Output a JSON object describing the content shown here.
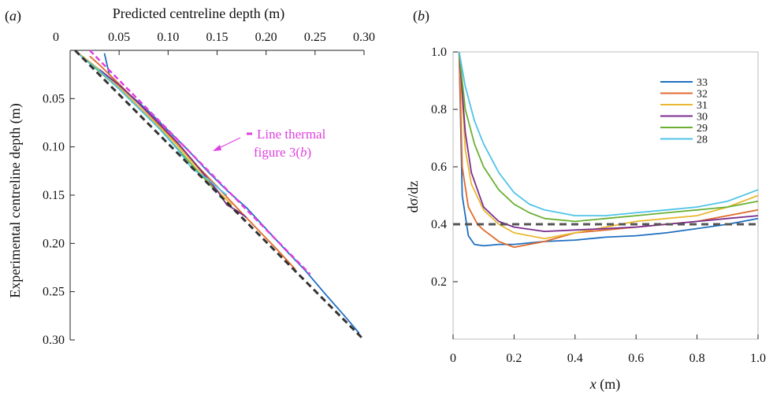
{
  "chart_data": [
    {
      "panel_label": "(a)",
      "type": "line",
      "xlabel": "Predicted centreline depth (m)",
      "ylabel": "Experimental centreline depth (m)",
      "xlim": [
        0,
        0.3
      ],
      "ylim": [
        0,
        0.3
      ],
      "x_axis_position": "top",
      "y_inverted": true,
      "x_ticks": [
        "0",
        "0.05",
        "0.10",
        "0.15",
        "0.20",
        "0.25",
        "0.30"
      ],
      "y_ticks": [
        "0.05",
        "0.10",
        "0.15",
        "0.20",
        "0.25",
        "0.30"
      ],
      "grid": false,
      "annotation": {
        "line1": "Line thermal",
        "line2_prefix": "figure 3(",
        "line2_italic": "b",
        "line2_suffix": ")",
        "color": "#e040e0"
      },
      "reference_line": {
        "x": [
          0.005,
          0.3
        ],
        "y": [
          0.0,
          0.3
        ],
        "color": "#333333",
        "style": "dashed"
      },
      "thermal_line": {
        "x": [
          0.02,
          0.245
        ],
        "y": [
          0.0,
          0.232
        ],
        "color": "#e040e0",
        "style": "dashed"
      },
      "series": [
        {
          "color": "#1f6fc0",
          "x": [
            0.035,
            0.04,
            0.045,
            0.06,
            0.08,
            0.1,
            0.12,
            0.14,
            0.16,
            0.18,
            0.2,
            0.22,
            0.24,
            0.26,
            0.28,
            0.295
          ],
          "y": [
            0.003,
            0.025,
            0.03,
            0.045,
            0.063,
            0.083,
            0.103,
            0.125,
            0.145,
            0.163,
            0.185,
            0.207,
            0.228,
            0.252,
            0.275,
            0.293
          ]
        },
        {
          "color": "#e06a2c",
          "x": [
            0.02,
            0.03,
            0.05,
            0.07,
            0.09,
            0.11,
            0.13,
            0.15,
            0.17,
            0.19,
            0.21,
            0.23
          ],
          "y": [
            0.006,
            0.015,
            0.035,
            0.055,
            0.076,
            0.097,
            0.12,
            0.141,
            0.163,
            0.184,
            0.205,
            0.227
          ]
        },
        {
          "color": "#e9b830",
          "x": [
            0.01,
            0.03,
            0.05,
            0.07,
            0.09,
            0.11,
            0.13,
            0.15,
            0.165
          ],
          "y": [
            0.004,
            0.02,
            0.038,
            0.058,
            0.078,
            0.099,
            0.122,
            0.145,
            0.16
          ]
        },
        {
          "color": "#7b2d8f",
          "x": [
            0.03,
            0.05,
            0.07,
            0.09,
            0.11,
            0.13,
            0.15,
            0.16,
            0.17,
            0.18
          ],
          "y": [
            0.02,
            0.036,
            0.055,
            0.075,
            0.096,
            0.12,
            0.145,
            0.16,
            0.166,
            0.173
          ]
        },
        {
          "color": "#6ab033",
          "x": [
            0.01,
            0.03,
            0.05,
            0.07,
            0.09,
            0.11,
            0.13,
            0.15
          ],
          "y": [
            0.005,
            0.022,
            0.04,
            0.06,
            0.08,
            0.102,
            0.125,
            0.147
          ]
        },
        {
          "color": "#4fc3e8",
          "x": [
            0.01,
            0.03,
            0.05,
            0.07,
            0.09,
            0.11,
            0.125,
            0.14,
            0.155,
            0.16
          ],
          "y": [
            0.005,
            0.021,
            0.04,
            0.06,
            0.08,
            0.103,
            0.123,
            0.133,
            0.146,
            0.15
          ]
        }
      ]
    },
    {
      "panel_label": "(b)",
      "type": "line",
      "xlabel_italic": "x",
      "xlabel_suffix": " (m)",
      "ylabel": "dσ/dz",
      "xlim": [
        0,
        1.0
      ],
      "ylim": [
        0,
        1.0
      ],
      "x_ticks": [
        "0",
        "0.2",
        "0.4",
        "0.6",
        "0.8",
        "1.0"
      ],
      "y_ticks": [
        "0.2",
        "0.4",
        "0.6",
        "0.8",
        "1.0"
      ],
      "grid": false,
      "legend_position": "top-right",
      "reference_line": {
        "y": 0.4,
        "color": "#555555",
        "style": "dashed"
      },
      "series": [
        {
          "name": "33",
          "color": "#1f6fc0",
          "x": [
            0.02,
            0.03,
            0.05,
            0.07,
            0.1,
            0.15,
            0.2,
            0.3,
            0.4,
            0.5,
            0.6,
            0.7,
            0.8,
            0.9,
            1.0
          ],
          "y": [
            1.0,
            0.5,
            0.36,
            0.33,
            0.325,
            0.33,
            0.33,
            0.34,
            0.345,
            0.355,
            0.36,
            0.37,
            0.385,
            0.4,
            0.42
          ]
        },
        {
          "name": "32",
          "color": "#e06a2c",
          "x": [
            0.02,
            0.03,
            0.05,
            0.08,
            0.1,
            0.15,
            0.2,
            0.3,
            0.4,
            0.5,
            0.6,
            0.7,
            0.8,
            0.9,
            1.0
          ],
          "y": [
            1.0,
            0.6,
            0.46,
            0.4,
            0.38,
            0.34,
            0.32,
            0.34,
            0.37,
            0.38,
            0.39,
            0.4,
            0.41,
            0.43,
            0.45
          ]
        },
        {
          "name": "31",
          "color": "#e9b830",
          "x": [
            0.02,
            0.04,
            0.06,
            0.1,
            0.15,
            0.2,
            0.3,
            0.4,
            0.5,
            0.6,
            0.7,
            0.8,
            0.9,
            1.0
          ],
          "y": [
            1.0,
            0.66,
            0.54,
            0.45,
            0.4,
            0.37,
            0.35,
            0.37,
            0.39,
            0.41,
            0.42,
            0.43,
            0.46,
            0.5
          ]
        },
        {
          "name": "30",
          "color": "#7b2d8f",
          "x": [
            0.02,
            0.04,
            0.06,
            0.1,
            0.15,
            0.2,
            0.3,
            0.4,
            0.5,
            0.6,
            0.7,
            0.8,
            0.9,
            1.0
          ],
          "y": [
            1.0,
            0.72,
            0.58,
            0.46,
            0.41,
            0.39,
            0.375,
            0.38,
            0.385,
            0.39,
            0.4,
            0.41,
            0.42,
            0.43
          ]
        },
        {
          "name": "29",
          "color": "#6ab033",
          "x": [
            0.02,
            0.04,
            0.07,
            0.1,
            0.15,
            0.2,
            0.25,
            0.3,
            0.4,
            0.5,
            0.6,
            0.7,
            0.8,
            0.9,
            1.0
          ],
          "y": [
            1.0,
            0.8,
            0.68,
            0.6,
            0.52,
            0.47,
            0.44,
            0.42,
            0.41,
            0.42,
            0.43,
            0.44,
            0.45,
            0.46,
            0.48
          ]
        },
        {
          "name": "28",
          "color": "#4fc3e8",
          "x": [
            0.02,
            0.04,
            0.07,
            0.1,
            0.15,
            0.2,
            0.25,
            0.3,
            0.4,
            0.5,
            0.6,
            0.7,
            0.8,
            0.9,
            1.0
          ],
          "y": [
            1.0,
            0.88,
            0.76,
            0.68,
            0.58,
            0.51,
            0.47,
            0.45,
            0.43,
            0.43,
            0.44,
            0.45,
            0.46,
            0.48,
            0.52
          ]
        }
      ]
    }
  ]
}
